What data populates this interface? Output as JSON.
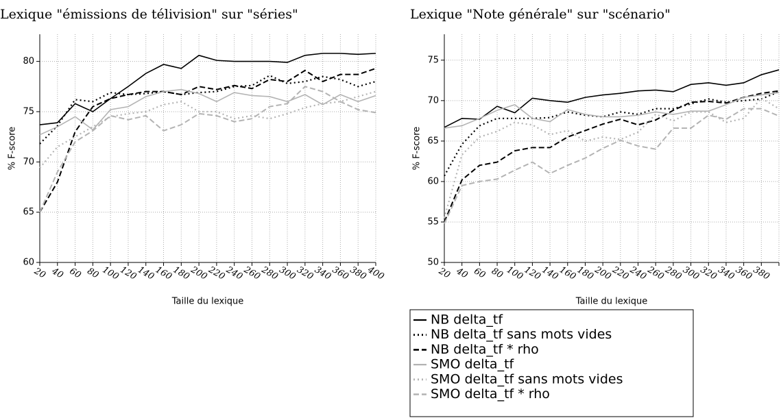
{
  "chart_data": [
    {
      "type": "line",
      "title": "Lexique \"émissions de télivision\" sur \"séries\"",
      "x_label": "Taille du lexique",
      "y_label": "% F-score",
      "categories": [
        20,
        40,
        60,
        80,
        100,
        120,
        140,
        160,
        180,
        200,
        220,
        240,
        260,
        280,
        300,
        320,
        340,
        360,
        380,
        400
      ],
      "ylim": [
        60,
        82.7
      ],
      "yticks": [
        60,
        65,
        70,
        75,
        80
      ],
      "grid": true,
      "series": [
        {
          "name": "NB delta_tf",
          "color": "#000000",
          "style": "solid",
          "values": [
            73.7,
            73.9,
            75.8,
            75.0,
            76.3,
            77.5,
            78.8,
            79.7,
            79.3,
            80.6,
            80.1,
            80.0,
            80.0,
            80.0,
            79.9,
            80.6,
            80.8,
            80.8,
            80.7,
            80.8
          ]
        },
        {
          "name": "NB delta_tf sans mots vides",
          "color": "#000000",
          "style": "dotted",
          "values": [
            71.8,
            73.6,
            76.2,
            76.0,
            76.9,
            76.7,
            76.8,
            77.0,
            76.7,
            76.9,
            77.0,
            77.5,
            77.6,
            78.6,
            77.8,
            78.0,
            78.5,
            78.2,
            77.5,
            78.0
          ]
        },
        {
          "name": "NB delta_tf * rho",
          "color": "#000000",
          "style": "dashed",
          "values": [
            65.0,
            68.0,
            73.0,
            75.5,
            76.3,
            76.7,
            77.0,
            77.0,
            76.7,
            77.5,
            77.2,
            77.6,
            77.3,
            78.2,
            78.0,
            79.1,
            78.0,
            78.7,
            78.7,
            79.3
          ]
        },
        {
          "name": "SMO delta_tf",
          "color": "#b3b3b3",
          "style": "solid",
          "values": [
            72.7,
            73.5,
            74.5,
            73.2,
            75.2,
            75.5,
            76.5,
            77.0,
            77.2,
            76.8,
            76.0,
            76.9,
            76.6,
            76.5,
            76.0,
            76.7,
            75.7,
            76.7,
            76.0,
            76.6
          ]
        },
        {
          "name": "SMO delta_tf sans mots vides",
          "color": "#b3b3b3",
          "style": "dotted",
          "values": [
            69.4,
            71.5,
            72.5,
            73.5,
            74.5,
            74.8,
            75.0,
            75.7,
            76.0,
            75.0,
            75.0,
            74.3,
            74.6,
            74.3,
            74.8,
            75.4,
            75.8,
            76.0,
            76.5,
            77.0
          ]
        },
        {
          "name": "SMO delta_tf * rho",
          "color": "#b3b3b3",
          "style": "dashed",
          "values": [
            65.0,
            69.0,
            72.0,
            73.1,
            74.6,
            74.2,
            74.6,
            73.1,
            73.7,
            74.8,
            74.6,
            74.0,
            74.3,
            75.5,
            75.8,
            77.5,
            77.0,
            76.0,
            75.2,
            74.9
          ]
        }
      ]
    },
    {
      "type": "line",
      "title": "Lexique \"Note générale\" sur \"scénario\"",
      "x_label": "Taille du lexique",
      "y_label": "% F-score",
      "categories": [
        20,
        40,
        60,
        80,
        100,
        120,
        140,
        160,
        180,
        200,
        220,
        240,
        260,
        280,
        300,
        320,
        340,
        360,
        380,
        null
      ],
      "ylim": [
        50,
        78.2
      ],
      "yticks": [
        50,
        55,
        60,
        65,
        70,
        75
      ],
      "grid": true,
      "series": [
        {
          "color": "#000000",
          "style": "solid",
          "values": [
            66.7,
            67.8,
            67.7,
            69.3,
            68.5,
            70.3,
            70.0,
            69.8,
            70.4,
            70.7,
            70.9,
            71.2,
            71.3,
            71.1,
            72.0,
            72.2,
            71.9,
            72.2,
            73.2,
            73.8
          ]
        },
        {
          "color": "#000000",
          "style": "dotted",
          "values": [
            60.7,
            64.6,
            66.9,
            67.8,
            67.8,
            67.8,
            67.9,
            68.6,
            68.2,
            68.0,
            68.6,
            68.3,
            69.0,
            69.0,
            69.6,
            70.2,
            69.8,
            70.0,
            70.2,
            71.1
          ]
        },
        {
          "color": "#000000",
          "style": "dashed",
          "values": [
            55.0,
            60.2,
            62.0,
            62.4,
            63.8,
            64.2,
            64.2,
            65.5,
            66.3,
            67.1,
            67.7,
            67.0,
            67.6,
            68.8,
            69.8,
            69.9,
            69.7,
            70.4,
            70.9,
            71.2
          ]
        },
        {
          "color": "#b3b3b3",
          "style": "solid",
          "values": [
            66.6,
            66.9,
            67.8,
            68.8,
            69.5,
            67.8,
            67.4,
            68.9,
            68.3,
            68.0,
            68.0,
            68.2,
            68.6,
            68.3,
            68.7,
            68.7,
            69.5,
            70.4,
            70.7,
            71.0
          ]
        },
        {
          "color": "#b3b3b3",
          "style": "dotted",
          "values": [
            55.5,
            63.3,
            65.5,
            66.2,
            67.3,
            67.0,
            65.8,
            66.3,
            65.0,
            65.5,
            65.2,
            66.1,
            68.3,
            67.5,
            68.6,
            68.6,
            67.3,
            67.8,
            70.3,
            69.0
          ]
        },
        {
          "color": "#b3b3b3",
          "style": "dashed",
          "values": [
            54.8,
            59.5,
            60.0,
            60.3,
            61.4,
            62.4,
            61.0,
            62.0,
            62.9,
            64.1,
            65.1,
            64.4,
            64.0,
            66.6,
            66.6,
            68.2,
            67.7,
            69.0,
            69.0,
            68.1
          ]
        }
      ]
    }
  ]
}
